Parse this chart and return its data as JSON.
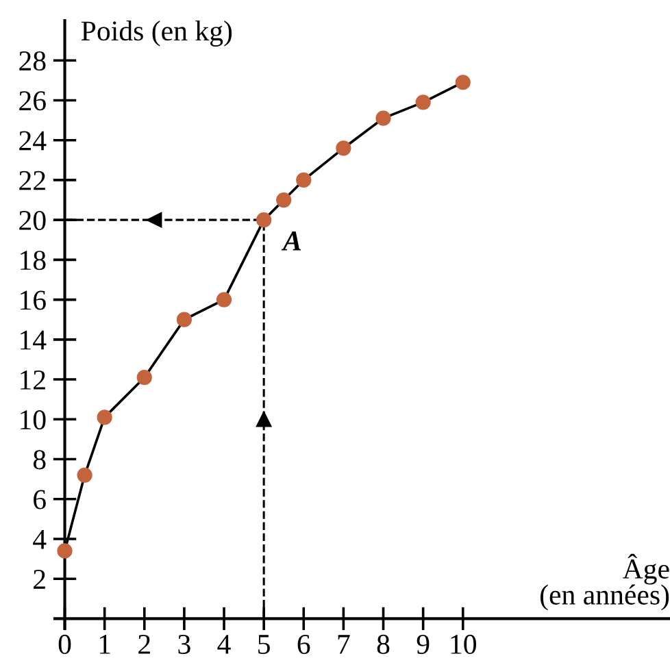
{
  "chart_data": {
    "type": "line",
    "xlabel": "Âge\n(en années)",
    "ylabel": "Poids (en kg)",
    "x": [
      0,
      0.5,
      1,
      2,
      3,
      4,
      5,
      5.5,
      6,
      7,
      8,
      9,
      10
    ],
    "series": [
      {
        "color": "#c4643c",
        "values": [
          3.4,
          7.2,
          10.1,
          12.1,
          15,
          16,
          20,
          21,
          22,
          23.6,
          25.1,
          25.9,
          26.9
        ]
      }
    ],
    "marker": "circle",
    "line_style": "solid",
    "grid": false,
    "legend": false,
    "xlim": [
      -0.25,
      15.2
    ],
    "ylim": [
      -0.5,
      30
    ],
    "xticks": [
      0,
      1,
      2,
      3,
      4,
      5,
      6,
      7,
      8,
      9,
      10
    ],
    "yticks": [
      2,
      4,
      6,
      8,
      10,
      12,
      14,
      16,
      18,
      20,
      22,
      24,
      26,
      28
    ],
    "ref_lines": [
      {
        "axis": "y",
        "value": 20,
        "label": null,
        "line_style": "dashed",
        "color": "#000000"
      },
      {
        "axis": "x",
        "value": 5,
        "label": null,
        "line_style": "dashed",
        "color": "#000000"
      }
    ],
    "annotations": [
      {
        "text": "A",
        "x": 5,
        "y": 20
      }
    ]
  }
}
